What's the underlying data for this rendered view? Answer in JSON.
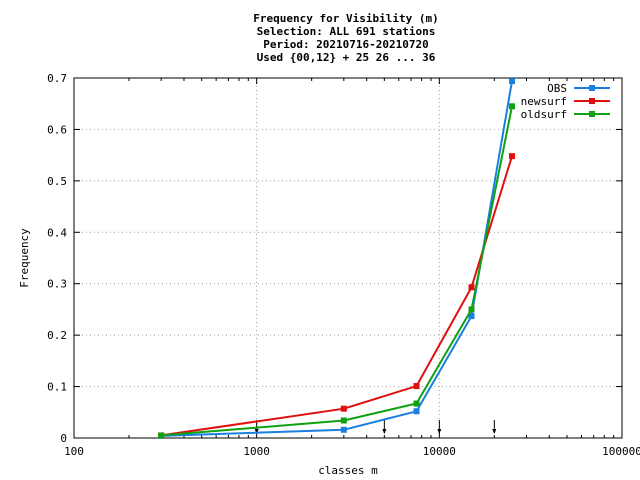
{
  "chart_data": {
    "type": "line",
    "title_lines": [
      "Frequency  for Visibility (m)",
      "Selection: ALL    691 stations",
      "Period: 20210716-20210720",
      "Used {00,12} + 25 26 ... 36"
    ],
    "xlabel": "classes m",
    "ylabel": "Frequency",
    "x_scale": "log",
    "xlim": [
      100,
      100000
    ],
    "ylim": [
      0,
      0.7
    ],
    "x_ticks": [
      100,
      1000,
      10000,
      100000
    ],
    "x_tick_labels": [
      "100",
      "1000",
      "10000",
      "100000"
    ],
    "y_ticks": [
      0,
      0.1,
      0.2,
      0.3,
      0.4,
      0.5,
      0.6,
      0.7
    ],
    "y_tick_labels": [
      "0",
      "0.1",
      "0.2",
      "0.3",
      "0.4",
      "0.5",
      "0.6",
      "0.7"
    ],
    "grid": true,
    "legend_position": "top-right",
    "class_markers": [
      1000,
      5000,
      10000,
      20000
    ],
    "series": [
      {
        "name": "OBS",
        "color": "#1a7fe0",
        "x": [
          300,
          3000,
          7500,
          15000,
          25000
        ],
        "y": [
          0.004,
          0.016,
          0.052,
          0.237,
          0.694
        ]
      },
      {
        "name": "newsurf",
        "color": "#e01010",
        "x": [
          300,
          3000,
          7500,
          15000,
          25000
        ],
        "y": [
          0.005,
          0.057,
          0.101,
          0.293,
          0.548
        ]
      },
      {
        "name": "oldsurf",
        "color": "#10a010",
        "x": [
          300,
          3000,
          7500,
          15000,
          25000
        ],
        "y": [
          0.005,
          0.034,
          0.067,
          0.25,
          0.645
        ]
      }
    ]
  }
}
